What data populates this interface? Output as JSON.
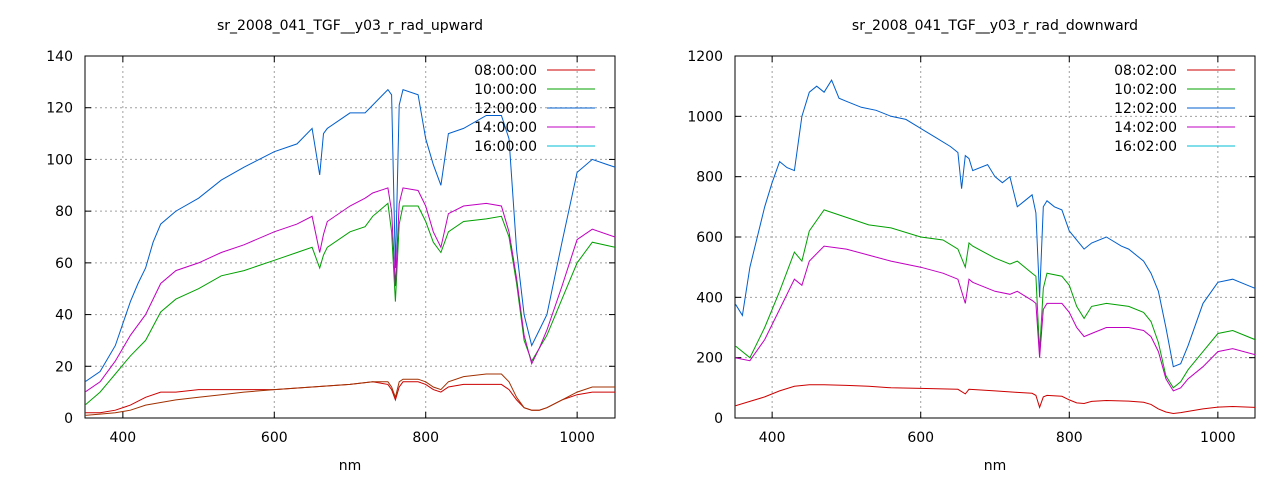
{
  "chart_data": [
    {
      "type": "line",
      "title": "sr_2008_041_TGF__y03_r_rad_upward",
      "xlabel": "nm",
      "ylabel": "",
      "xlim": [
        350,
        1050
      ],
      "ylim": [
        0,
        140
      ],
      "xticks": [
        400,
        600,
        800,
        1000
      ],
      "yticks": [
        0,
        20,
        40,
        60,
        80,
        100,
        120,
        140
      ],
      "grid": true,
      "legend_position": "top-right",
      "series": [
        {
          "name": "08:00:00",
          "color": "#cc0000",
          "x": [
            350,
            370,
            390,
            410,
            430,
            450,
            470,
            500,
            530,
            560,
            600,
            650,
            700,
            730,
            750,
            755,
            760,
            765,
            770,
            790,
            800,
            810,
            820,
            830,
            850,
            880,
            900,
            910,
            920,
            930,
            940,
            950,
            960,
            980,
            1000,
            1020,
            1050
          ],
          "y": [
            2,
            2,
            3,
            5,
            8,
            10,
            10,
            11,
            11,
            11,
            11,
            12,
            13,
            14,
            13,
            11,
            7,
            12,
            14,
            14,
            13,
            11,
            10,
            12,
            13,
            13,
            13,
            11,
            7,
            4,
            3,
            3,
            4,
            7,
            9,
            10,
            10
          ]
        },
        {
          "name": "10:00:00",
          "color": "#00a000",
          "x": [
            350,
            370,
            390,
            410,
            430,
            450,
            470,
            500,
            530,
            560,
            600,
            630,
            650,
            660,
            665,
            670,
            700,
            720,
            730,
            750,
            755,
            760,
            765,
            770,
            790,
            800,
            810,
            820,
            830,
            850,
            880,
            900,
            910,
            920,
            930,
            940,
            950,
            960,
            980,
            1000,
            1020,
            1050
          ],
          "y": [
            5,
            10,
            17,
            24,
            30,
            41,
            46,
            50,
            55,
            57,
            61,
            64,
            66,
            58,
            63,
            66,
            72,
            74,
            78,
            83,
            72,
            45,
            75,
            82,
            82,
            76,
            68,
            64,
            72,
            76,
            77,
            78,
            70,
            52,
            30,
            22,
            27,
            32,
            46,
            60,
            68,
            66
          ]
        },
        {
          "name": "12:00:00",
          "color": "#005ecc",
          "x": [
            350,
            370,
            390,
            410,
            420,
            430,
            440,
            450,
            470,
            500,
            530,
            560,
            600,
            630,
            650,
            660,
            665,
            670,
            700,
            720,
            730,
            750,
            755,
            760,
            765,
            770,
            790,
            800,
            810,
            820,
            830,
            850,
            880,
            900,
            910,
            920,
            930,
            940,
            950,
            960,
            980,
            1000,
            1020,
            1040,
            1050
          ],
          "y": [
            14,
            18,
            28,
            45,
            52,
            58,
            68,
            75,
            80,
            85,
            92,
            97,
            103,
            106,
            112,
            94,
            110,
            112,
            118,
            118,
            121,
            127,
            125,
            58,
            121,
            127,
            125,
            108,
            98,
            90,
            110,
            112,
            117,
            117,
            108,
            65,
            40,
            28,
            34,
            40,
            68,
            95,
            100,
            98,
            97
          ]
        },
        {
          "name": "14:00:00",
          "color": "#c000c0",
          "x": [
            350,
            370,
            390,
            410,
            430,
            450,
            470,
            500,
            530,
            560,
            600,
            630,
            650,
            660,
            665,
            670,
            700,
            720,
            730,
            750,
            755,
            760,
            765,
            770,
            790,
            800,
            810,
            820,
            830,
            850,
            880,
            900,
            910,
            920,
            930,
            940,
            950,
            960,
            980,
            1000,
            1020,
            1050
          ],
          "y": [
            10,
            14,
            22,
            32,
            40,
            52,
            57,
            60,
            64,
            67,
            72,
            75,
            78,
            64,
            71,
            76,
            82,
            85,
            87,
            89,
            80,
            51,
            83,
            89,
            88,
            82,
            72,
            66,
            79,
            82,
            83,
            82,
            72,
            54,
            32,
            21,
            27,
            34,
            51,
            69,
            73,
            70
          ]
        },
        {
          "name": "16:00:00",
          "color": "#00bcd4",
          "x": [],
          "y": []
        },
        {
          "name": "",
          "color": "#a03000",
          "x": [
            350,
            370,
            390,
            410,
            430,
            450,
            470,
            500,
            530,
            560,
            600,
            650,
            700,
            730,
            750,
            755,
            760,
            765,
            770,
            790,
            800,
            810,
            820,
            830,
            850,
            880,
            900,
            910,
            920,
            930,
            940,
            950,
            960,
            980,
            1000,
            1020,
            1050
          ],
          "y": [
            1,
            1.5,
            2,
            3,
            5,
            6,
            7,
            8,
            9,
            10,
            11,
            12,
            13,
            14,
            14,
            12,
            8,
            14,
            15,
            15,
            14,
            12,
            11,
            14,
            16,
            17,
            17,
            14,
            8,
            4,
            3,
            3,
            4,
            7,
            10,
            12,
            12
          ]
        }
      ]
    },
    {
      "type": "line",
      "title": "sr_2008_041_TGF__y03_r_rad_downward",
      "xlabel": "nm",
      "ylabel": "",
      "xlim": [
        350,
        1050
      ],
      "ylim": [
        0,
        1200
      ],
      "xticks": [
        400,
        600,
        800,
        1000
      ],
      "yticks": [
        0,
        200,
        400,
        600,
        800,
        1000,
        1200
      ],
      "grid": true,
      "legend_position": "top-right",
      "series": [
        {
          "name": "08:02:00",
          "color": "#cc0000",
          "x": [
            350,
            370,
            390,
            410,
            430,
            450,
            470,
            500,
            530,
            560,
            600,
            650,
            660,
            665,
            700,
            730,
            750,
            755,
            760,
            765,
            770,
            790,
            800,
            810,
            820,
            830,
            850,
            880,
            900,
            910,
            920,
            930,
            940,
            950,
            960,
            980,
            1000,
            1020,
            1050
          ],
          "y": [
            40,
            55,
            70,
            90,
            105,
            110,
            110,
            108,
            105,
            100,
            98,
            95,
            80,
            95,
            90,
            85,
            82,
            75,
            35,
            70,
            75,
            72,
            60,
            50,
            48,
            55,
            58,
            56,
            52,
            45,
            30,
            20,
            15,
            18,
            22,
            30,
            36,
            38,
            35
          ]
        },
        {
          "name": "10:02:00",
          "color": "#00a000",
          "x": [
            350,
            370,
            390,
            410,
            430,
            440,
            450,
            470,
            500,
            530,
            560,
            600,
            630,
            650,
            660,
            665,
            670,
            700,
            720,
            730,
            750,
            755,
            760,
            765,
            770,
            790,
            800,
            810,
            820,
            830,
            850,
            880,
            900,
            910,
            920,
            930,
            940,
            950,
            960,
            980,
            1000,
            1020,
            1050
          ],
          "y": [
            240,
            200,
            300,
            420,
            550,
            520,
            620,
            690,
            665,
            640,
            630,
            600,
            590,
            560,
            500,
            580,
            570,
            530,
            510,
            520,
            480,
            470,
            220,
            430,
            480,
            470,
            440,
            370,
            330,
            370,
            380,
            370,
            350,
            320,
            250,
            140,
            100,
            120,
            160,
            220,
            280,
            290,
            260
          ]
        },
        {
          "name": "12:02:00",
          "color": "#005ecc",
          "x": [
            350,
            360,
            370,
            390,
            400,
            410,
            420,
            430,
            440,
            450,
            460,
            470,
            480,
            490,
            500,
            520,
            540,
            560,
            580,
            600,
            620,
            640,
            650,
            655,
            660,
            665,
            670,
            690,
            700,
            710,
            720,
            730,
            740,
            750,
            755,
            760,
            765,
            770,
            780,
            790,
            800,
            820,
            830,
            850,
            870,
            880,
            900,
            910,
            920,
            930,
            940,
            950,
            960,
            980,
            1000,
            1020,
            1040,
            1050
          ],
          "y": [
            380,
            340,
            500,
            700,
            780,
            850,
            830,
            820,
            1000,
            1080,
            1100,
            1080,
            1120,
            1060,
            1050,
            1030,
            1020,
            1000,
            990,
            960,
            930,
            900,
            880,
            760,
            870,
            860,
            820,
            840,
            800,
            780,
            800,
            700,
            720,
            740,
            680,
            400,
            700,
            720,
            700,
            690,
            620,
            560,
            580,
            600,
            570,
            560,
            520,
            480,
            420,
            300,
            170,
            180,
            240,
            380,
            450,
            460,
            440,
            430
          ]
        },
        {
          "name": "14:02:00",
          "color": "#c000c0",
          "x": [
            350,
            370,
            390,
            410,
            430,
            440,
            450,
            470,
            500,
            530,
            560,
            600,
            630,
            650,
            660,
            665,
            670,
            700,
            720,
            730,
            750,
            755,
            760,
            765,
            770,
            790,
            800,
            810,
            820,
            830,
            850,
            880,
            900,
            910,
            920,
            930,
            940,
            950,
            960,
            980,
            1000,
            1020,
            1050
          ],
          "y": [
            200,
            190,
            260,
            360,
            460,
            440,
            520,
            570,
            560,
            540,
            520,
            500,
            480,
            460,
            380,
            460,
            450,
            420,
            410,
            420,
            390,
            380,
            200,
            360,
            380,
            380,
            350,
            300,
            270,
            280,
            300,
            300,
            290,
            270,
            220,
            130,
            90,
            100,
            130,
            170,
            220,
            230,
            210
          ]
        },
        {
          "name": "16:02:00",
          "color": "#00bcd4",
          "x": [],
          "y": []
        }
      ]
    }
  ]
}
